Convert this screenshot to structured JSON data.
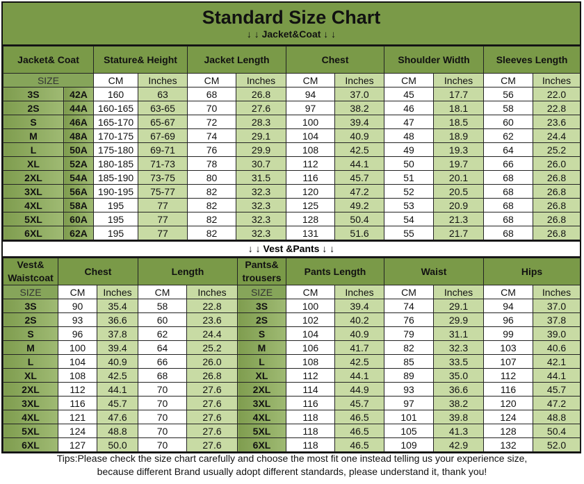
{
  "title": "Standard Size Chart",
  "jacket_section": "↓ ↓  Jacket&Coat ↓ ↓",
  "vest_section": "↓ ↓  Vest &Pants ↓ ↓",
  "units": {
    "size": "SIZE",
    "cm": "CM",
    "inches": "Inches"
  },
  "jacket": {
    "headers": [
      "Jacket& Coat",
      "Stature& Height",
      "Jacket Length",
      "Chest",
      "Shoulder Width",
      "Sleeves Length"
    ],
    "rows": [
      {
        "size": "3S",
        "code": "42A",
        "values": [
          "160",
          "63",
          "68",
          "26.8",
          "94",
          "37.0",
          "45",
          "17.7",
          "56",
          "22.0"
        ]
      },
      {
        "size": "2S",
        "code": "44A",
        "values": [
          "160-165",
          "63-65",
          "70",
          "27.6",
          "97",
          "38.2",
          "46",
          "18.1",
          "58",
          "22.8"
        ]
      },
      {
        "size": "S",
        "code": "46A",
        "values": [
          "165-170",
          "65-67",
          "72",
          "28.3",
          "100",
          "39.4",
          "47",
          "18.5",
          "60",
          "23.6"
        ]
      },
      {
        "size": "M",
        "code": "48A",
        "values": [
          "170-175",
          "67-69",
          "74",
          "29.1",
          "104",
          "40.9",
          "48",
          "18.9",
          "62",
          "24.4"
        ]
      },
      {
        "size": "L",
        "code": "50A",
        "values": [
          "175-180",
          "69-71",
          "76",
          "29.9",
          "108",
          "42.5",
          "49",
          "19.3",
          "64",
          "25.2"
        ]
      },
      {
        "size": "XL",
        "code": "52A",
        "values": [
          "180-185",
          "71-73",
          "78",
          "30.7",
          "112",
          "44.1",
          "50",
          "19.7",
          "66",
          "26.0"
        ]
      },
      {
        "size": "2XL",
        "code": "54A",
        "values": [
          "185-190",
          "73-75",
          "80",
          "31.5",
          "116",
          "45.7",
          "51",
          "20.1",
          "68",
          "26.8"
        ]
      },
      {
        "size": "3XL",
        "code": "56A",
        "values": [
          "190-195",
          "75-77",
          "82",
          "32.3",
          "120",
          "47.2",
          "52",
          "20.5",
          "68",
          "26.8"
        ]
      },
      {
        "size": "4XL",
        "code": "58A",
        "values": [
          "195",
          "77",
          "82",
          "32.3",
          "125",
          "49.2",
          "53",
          "20.9",
          "68",
          "26.8"
        ]
      },
      {
        "size": "5XL",
        "code": "60A",
        "values": [
          "195",
          "77",
          "82",
          "32.3",
          "128",
          "50.4",
          "54",
          "21.3",
          "68",
          "26.8"
        ]
      },
      {
        "size": "6XL",
        "code": "62A",
        "values": [
          "195",
          "77",
          "82",
          "32.3",
          "131",
          "51.6",
          "55",
          "21.7",
          "68",
          "26.8"
        ]
      }
    ]
  },
  "vest": {
    "headers": [
      "Vest& Waistcoat",
      "Chest",
      "Length",
      "Pants& trousers",
      "Pants Length",
      "Waist",
      "Hips"
    ],
    "rows": [
      {
        "size": "3S",
        "vest": [
          "90",
          "35.4",
          "58",
          "22.8"
        ],
        "pants": [
          "100",
          "39.4",
          "74",
          "29.1",
          "94",
          "37.0"
        ]
      },
      {
        "size": "2S",
        "vest": [
          "93",
          "36.6",
          "60",
          "23.6"
        ],
        "pants": [
          "102",
          "40.2",
          "76",
          "29.9",
          "96",
          "37.8"
        ]
      },
      {
        "size": "S",
        "vest": [
          "96",
          "37.8",
          "62",
          "24.4"
        ],
        "pants": [
          "104",
          "40.9",
          "79",
          "31.1",
          "99",
          "39.0"
        ]
      },
      {
        "size": "M",
        "vest": [
          "100",
          "39.4",
          "64",
          "25.2"
        ],
        "pants": [
          "106",
          "41.7",
          "82",
          "32.3",
          "103",
          "40.6"
        ]
      },
      {
        "size": "L",
        "vest": [
          "104",
          "40.9",
          "66",
          "26.0"
        ],
        "pants": [
          "108",
          "42.5",
          "85",
          "33.5",
          "107",
          "42.1"
        ]
      },
      {
        "size": "XL",
        "vest": [
          "108",
          "42.5",
          "68",
          "26.8"
        ],
        "pants": [
          "112",
          "44.1",
          "89",
          "35.0",
          "112",
          "44.1"
        ]
      },
      {
        "size": "2XL",
        "vest": [
          "112",
          "44.1",
          "70",
          "27.6"
        ],
        "pants": [
          "114",
          "44.9",
          "93",
          "36.6",
          "116",
          "45.7"
        ]
      },
      {
        "size": "3XL",
        "vest": [
          "116",
          "45.7",
          "70",
          "27.6"
        ],
        "pants": [
          "116",
          "45.7",
          "97",
          "38.2",
          "120",
          "47.2"
        ]
      },
      {
        "size": "4XL",
        "vest": [
          "121",
          "47.6",
          "70",
          "27.6"
        ],
        "pants": [
          "118",
          "46.5",
          "101",
          "39.8",
          "124",
          "48.8"
        ]
      },
      {
        "size": "5XL",
        "vest": [
          "124",
          "48.8",
          "70",
          "27.6"
        ],
        "pants": [
          "118",
          "46.5",
          "105",
          "41.3",
          "128",
          "50.4"
        ]
      },
      {
        "size": "6XL",
        "vest": [
          "127",
          "50.0",
          "70",
          "27.6"
        ],
        "pants": [
          "118",
          "46.5",
          "109",
          "42.9",
          "132",
          "52.0"
        ]
      }
    ]
  },
  "tips": {
    "line1": "Tips:Please check the size chart carefully and choose the most fit one instead telling us your experience size,",
    "line2": "because different Brand usually adopt different standards, please understand it, thank you!"
  }
}
